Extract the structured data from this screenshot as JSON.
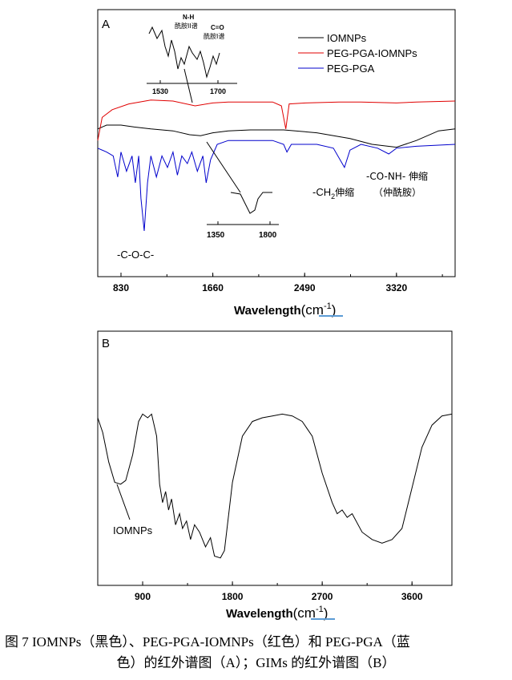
{
  "chart_data": [
    {
      "type": "line",
      "panel_label": "A",
      "xlabel": "Wavelength",
      "xlabel_unit": "cm",
      "xlabel_exp": "-1",
      "xlim": [
        620,
        3850
      ],
      "xticks": [
        830,
        1660,
        2490,
        3320
      ],
      "legend_position": "top-right",
      "series": [
        {
          "name": "IOMNPs",
          "color": "#000000",
          "points": [
            [
              620,
              0.58
            ],
            [
              700,
              0.6
            ],
            [
              830,
              0.6
            ],
            [
              950,
              0.59
            ],
            [
              1100,
              0.58
            ],
            [
              1300,
              0.57
            ],
            [
              1450,
              0.55
            ],
            [
              1550,
              0.545
            ],
            [
              1660,
              0.56
            ],
            [
              1800,
              0.57
            ],
            [
              2000,
              0.575
            ],
            [
              2300,
              0.575
            ],
            [
              2600,
              0.56
            ],
            [
              2900,
              0.53
            ],
            [
              3100,
              0.5
            ],
            [
              3320,
              0.485
            ],
            [
              3500,
              0.52
            ],
            [
              3700,
              0.57
            ],
            [
              3850,
              0.58
            ]
          ]
        },
        {
          "name": "PEG-PGA-IOMNPs",
          "color": "#e00000",
          "points": [
            [
              620,
              0.52
            ],
            [
              660,
              0.64
            ],
            [
              750,
              0.68
            ],
            [
              900,
              0.71
            ],
            [
              1100,
              0.73
            ],
            [
              1300,
              0.725
            ],
            [
              1500,
              0.7
            ],
            [
              1660,
              0.715
            ],
            [
              1800,
              0.72
            ],
            [
              2000,
              0.72
            ],
            [
              2200,
              0.72
            ],
            [
              2280,
              0.7
            ],
            [
              2320,
              0.58
            ],
            [
              2350,
              0.71
            ],
            [
              2500,
              0.715
            ],
            [
              2800,
              0.72
            ],
            [
              3000,
              0.72
            ],
            [
              3320,
              0.715
            ],
            [
              3500,
              0.72
            ],
            [
              3850,
              0.725
            ]
          ]
        },
        {
          "name": "PEG-PGA",
          "color": "#0000cc",
          "points": [
            [
              620,
              0.48
            ],
            [
              700,
              0.46
            ],
            [
              760,
              0.44
            ],
            [
              800,
              0.33
            ],
            [
              830,
              0.46
            ],
            [
              880,
              0.36
            ],
            [
              930,
              0.44
            ],
            [
              960,
              0.3
            ],
            [
              990,
              0.44
            ],
            [
              1010,
              0.22
            ],
            [
              1040,
              0.05
            ],
            [
              1070,
              0.3
            ],
            [
              1100,
              0.44
            ],
            [
              1150,
              0.33
            ],
            [
              1200,
              0.44
            ],
            [
              1250,
              0.38
            ],
            [
              1300,
              0.46
            ],
            [
              1340,
              0.34
            ],
            [
              1380,
              0.44
            ],
            [
              1430,
              0.4
            ],
            [
              1470,
              0.46
            ],
            [
              1520,
              0.36
            ],
            [
              1570,
              0.44
            ],
            [
              1600,
              0.3
            ],
            [
              1640,
              0.42
            ],
            [
              1700,
              0.5
            ],
            [
              1800,
              0.52
            ],
            [
              2000,
              0.52
            ],
            [
              2200,
              0.52
            ],
            [
              2300,
              0.5
            ],
            [
              2330,
              0.46
            ],
            [
              2370,
              0.5
            ],
            [
              2600,
              0.5
            ],
            [
              2750,
              0.48
            ],
            [
              2850,
              0.38
            ],
            [
              2900,
              0.47
            ],
            [
              3000,
              0.5
            ],
            [
              3150,
              0.48
            ],
            [
              3250,
              0.45
            ],
            [
              3320,
              0.48
            ],
            [
              3500,
              0.49
            ],
            [
              3850,
              0.5
            ]
          ]
        }
      ],
      "annotations": [
        "-C-O-C-",
        "-CH",
        "2",
        "伸缩",
        "（仲酰胺）",
        "-CO-NH- 伸缩",
        "N-H",
        "酰胺II谱",
        "C=O",
        "酰胺I谱"
      ],
      "inset_top": {
        "ticks": [
          "1530",
          "1700"
        ]
      },
      "inset_bottom": {
        "ticks": [
          "1350",
          "1800"
        ]
      }
    },
    {
      "type": "line",
      "panel_label": "B",
      "xlabel": "Wavelength",
      "xlabel_unit": "cm",
      "xlabel_exp": "-1",
      "xlim": [
        450,
        4000
      ],
      "xticks": [
        900,
        1800,
        2700,
        3600
      ],
      "series": [
        {
          "name": "",
          "color": "#000000",
          "points": [
            [
              450,
              0.8
            ],
            [
              500,
              0.72
            ],
            [
              560,
              0.56
            ],
            [
              620,
              0.45
            ],
            [
              680,
              0.44
            ],
            [
              730,
              0.46
            ],
            [
              800,
              0.6
            ],
            [
              860,
              0.78
            ],
            [
              900,
              0.82
            ],
            [
              950,
              0.8
            ],
            [
              990,
              0.82
            ],
            [
              1040,
              0.7
            ],
            [
              1070,
              0.44
            ],
            [
              1100,
              0.34
            ],
            [
              1130,
              0.4
            ],
            [
              1160,
              0.3
            ],
            [
              1190,
              0.36
            ],
            [
              1230,
              0.22
            ],
            [
              1270,
              0.28
            ],
            [
              1300,
              0.2
            ],
            [
              1340,
              0.24
            ],
            [
              1380,
              0.14
            ],
            [
              1420,
              0.22
            ],
            [
              1470,
              0.18
            ],
            [
              1530,
              0.1
            ],
            [
              1580,
              0.15
            ],
            [
              1620,
              0.05
            ],
            [
              1680,
              0.04
            ],
            [
              1720,
              0.08
            ],
            [
              1800,
              0.45
            ],
            [
              1900,
              0.7
            ],
            [
              2000,
              0.78
            ],
            [
              2100,
              0.8
            ],
            [
              2200,
              0.81
            ],
            [
              2300,
              0.82
            ],
            [
              2400,
              0.81
            ],
            [
              2500,
              0.78
            ],
            [
              2600,
              0.7
            ],
            [
              2700,
              0.5
            ],
            [
              2800,
              0.34
            ],
            [
              2850,
              0.28
            ],
            [
              2900,
              0.3
            ],
            [
              2950,
              0.26
            ],
            [
              3000,
              0.28
            ],
            [
              3100,
              0.18
            ],
            [
              3200,
              0.14
            ],
            [
              3300,
              0.12
            ],
            [
              3400,
              0.14
            ],
            [
              3500,
              0.2
            ],
            [
              3600,
              0.42
            ],
            [
              3700,
              0.64
            ],
            [
              3800,
              0.76
            ],
            [
              3900,
              0.81
            ],
            [
              4000,
              0.82
            ]
          ]
        }
      ],
      "annotations": [
        "IOMNPs"
      ]
    }
  ],
  "caption": {
    "line1": "图 7 IOMNPs（黑色）、PEG-PGA-IOMNPs（红色）和 PEG-PGA（蓝",
    "line2": "色）的红外谱图（A）；GIMs 的红外谱图（B）"
  },
  "colors": {
    "black": "#000000",
    "red": "#e00000",
    "blue": "#0000cc",
    "unit_underline": "#5b9bd5"
  }
}
